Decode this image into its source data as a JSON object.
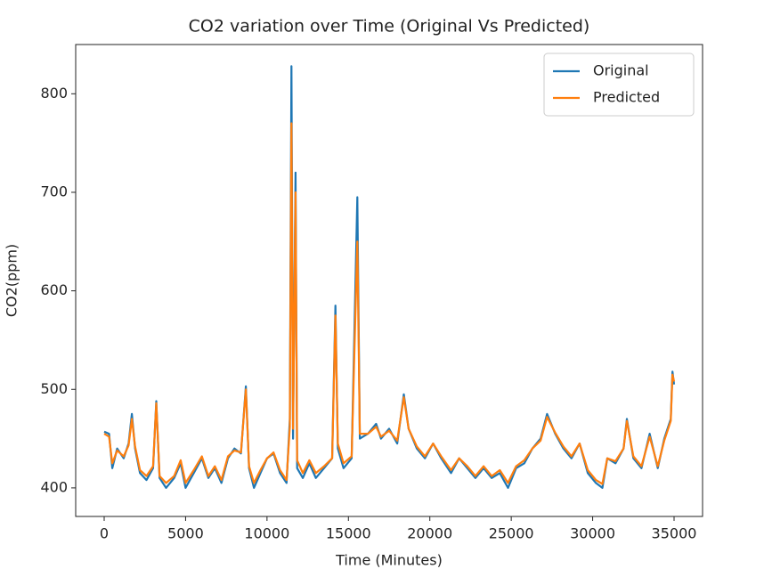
{
  "chart_data": {
    "type": "line",
    "title": "CO2 variation over Time (Original Vs Predicted)",
    "x_label": "Time (Minutes)",
    "y_label": "CO2(ppm)",
    "x": [
      0,
      300,
      500,
      800,
      1200,
      1500,
      1700,
      1900,
      2200,
      2600,
      3000,
      3200,
      3400,
      3800,
      4300,
      4700,
      5000,
      5500,
      6000,
      6400,
      6800,
      7200,
      7600,
      8000,
      8400,
      8700,
      8900,
      9200,
      9600,
      10000,
      10400,
      10800,
      11200,
      11400,
      11500,
      11600,
      11750,
      11850,
      12200,
      12600,
      13000,
      13500,
      14000,
      14200,
      14350,
      14700,
      15200,
      15550,
      15700,
      16200,
      16700,
      17000,
      17500,
      18000,
      18400,
      18700,
      19200,
      19700,
      20200,
      20700,
      21300,
      21800,
      22300,
      22800,
      23300,
      23800,
      24300,
      24800,
      25300,
      25800,
      26300,
      26800,
      27200,
      27700,
      28200,
      28700,
      29200,
      29700,
      30200,
      30600,
      30900,
      31400,
      31900,
      32100,
      32500,
      33000,
      33500,
      34000,
      34400,
      34800,
      34900,
      35000
    ],
    "series": [
      {
        "name": "Original",
        "color": "#1f77b4",
        "values": [
          457,
          455,
          420,
          440,
          430,
          445,
          475,
          440,
          415,
          408,
          420,
          488,
          410,
          400,
          410,
          425,
          400,
          415,
          430,
          410,
          420,
          405,
          430,
          440,
          435,
          503,
          420,
          400,
          415,
          430,
          435,
          415,
          405,
          470,
          828,
          450,
          720,
          420,
          410,
          425,
          410,
          420,
          430,
          585,
          440,
          420,
          430,
          695,
          450,
          455,
          465,
          450,
          460,
          445,
          495,
          460,
          440,
          430,
          445,
          430,
          415,
          430,
          420,
          410,
          420,
          410,
          415,
          400,
          420,
          425,
          440,
          450,
          475,
          455,
          440,
          430,
          445,
          415,
          405,
          400,
          430,
          425,
          440,
          470,
          430,
          420,
          455,
          420,
          450,
          470,
          518,
          505
        ]
      },
      {
        "name": "Predicted",
        "color": "#ff7f0e",
        "values": [
          455,
          452,
          425,
          438,
          432,
          443,
          470,
          442,
          418,
          412,
          422,
          486,
          412,
          405,
          412,
          428,
          405,
          418,
          432,
          412,
          422,
          408,
          432,
          438,
          436,
          500,
          422,
          405,
          418,
          430,
          436,
          418,
          408,
          462,
          770,
          460,
          700,
          428,
          415,
          428,
          415,
          422,
          430,
          575,
          445,
          425,
          432,
          650,
          455,
          455,
          462,
          452,
          458,
          448,
          492,
          460,
          442,
          432,
          445,
          432,
          418,
          430,
          422,
          412,
          422,
          412,
          418,
          405,
          422,
          428,
          440,
          448,
          472,
          456,
          442,
          432,
          445,
          418,
          408,
          404,
          430,
          427,
          440,
          468,
          432,
          422,
          452,
          422,
          448,
          468,
          515,
          508
        ]
      }
    ],
    "xlim": [
      -1750,
      36750
    ],
    "ylim": [
      371,
      850
    ],
    "xticks": [
      0,
      5000,
      10000,
      15000,
      20000,
      25000,
      30000,
      35000
    ],
    "yticks": [
      400,
      500,
      600,
      700,
      800
    ],
    "legend": "upper right"
  }
}
